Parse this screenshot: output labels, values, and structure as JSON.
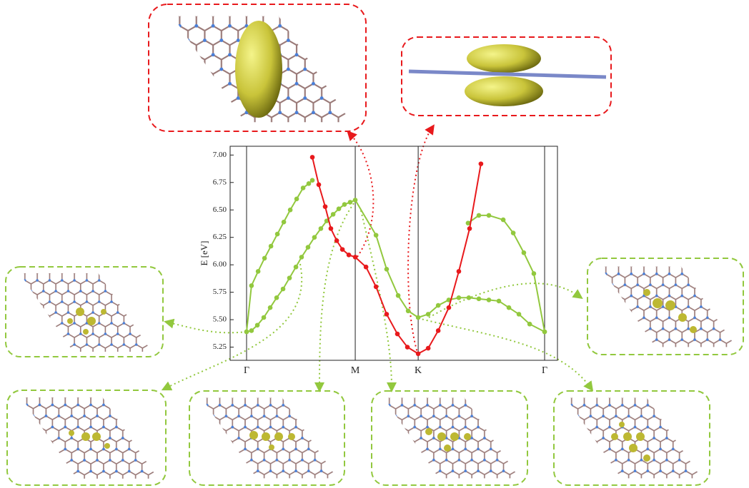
{
  "chart_data": {
    "type": "line",
    "ylabel": "E [eV]",
    "xlim": [
      -0.087,
      1.645
    ],
    "ylim": [
      5.13,
      7.08
    ],
    "xticks": [
      {
        "value": 0,
        "label": "Γ"
      },
      {
        "value": 0.575,
        "label": "M"
      },
      {
        "value": 0.908,
        "label": "K"
      },
      {
        "value": 1.577,
        "label": "Γ"
      }
    ],
    "yticks": [
      5.25,
      {
        "value": 5.5,
        "label": "5.50"
      },
      5.75,
      {
        "value": 6,
        "label": "6.00"
      },
      6.25,
      {
        "value": 6.5,
        "label": "6.50"
      },
      6.75,
      {
        "value": 7,
        "label": "7.00"
      }
    ],
    "series": [
      {
        "color": "#92c83e",
        "x": [
          0,
          0.026,
          0.061,
          0.095,
          0.129,
          0.163,
          0.197,
          0.231,
          0.265,
          0.299,
          0.329,
          0.348
        ],
        "values": [
          5.39,
          5.81,
          5.94,
          6.06,
          6.17,
          6.28,
          6.39,
          6.5,
          6.6,
          6.7,
          6.74,
          6.77
        ]
      },
      {
        "color": "#92c83e",
        "x": [
          1.172,
          1.229,
          1.282,
          1.358,
          1.411,
          1.467,
          1.52,
          1.577
        ],
        "values": [
          6.38,
          6.45,
          6.45,
          6.41,
          6.29,
          6.11,
          5.92,
          5.39
        ]
      },
      {
        "color": "#92c83e",
        "x": [
          0,
          0.026,
          0.057,
          0.091,
          0.125,
          0.159,
          0.193,
          0.227,
          0.261,
          0.291,
          0.325,
          0.359,
          0.393,
          0.424,
          0.458,
          0.488,
          0.518,
          0.548,
          0.575,
          0.685,
          0.741,
          0.802,
          0.855,
          0.908,
          0.961,
          1.014,
          1.07,
          1.123,
          1.176,
          1.229,
          1.282,
          1.335,
          1.388,
          1.441,
          1.498,
          1.577
        ],
        "values": [
          5.39,
          5.4,
          5.45,
          5.52,
          5.61,
          5.7,
          5.78,
          5.88,
          5.98,
          6.07,
          6.16,
          6.25,
          6.33,
          6.4,
          6.46,
          6.51,
          6.55,
          6.57,
          6.59,
          6.27,
          5.96,
          5.72,
          5.58,
          5.52,
          5.55,
          5.63,
          5.68,
          5.7,
          5.7,
          5.69,
          5.68,
          5.67,
          5.61,
          5.55,
          5.46,
          5.39
        ]
      },
      {
        "color": "#e8191c",
        "x": [
          0.348,
          0.382,
          0.416,
          0.446,
          0.477,
          0.507,
          0.541,
          0.575,
          0.632,
          0.685,
          0.741,
          0.798,
          0.851,
          0.908,
          0.961,
          1.014,
          1.07,
          1.123,
          1.18,
          1.24
        ],
        "values": [
          6.98,
          6.73,
          6.53,
          6.33,
          6.22,
          6.14,
          6.09,
          6.07,
          5.98,
          5.8,
          5.55,
          5.37,
          5.25,
          5.19,
          5.24,
          5.4,
          5.61,
          5.94,
          6.33,
          6.92
        ]
      }
    ]
  }
}
